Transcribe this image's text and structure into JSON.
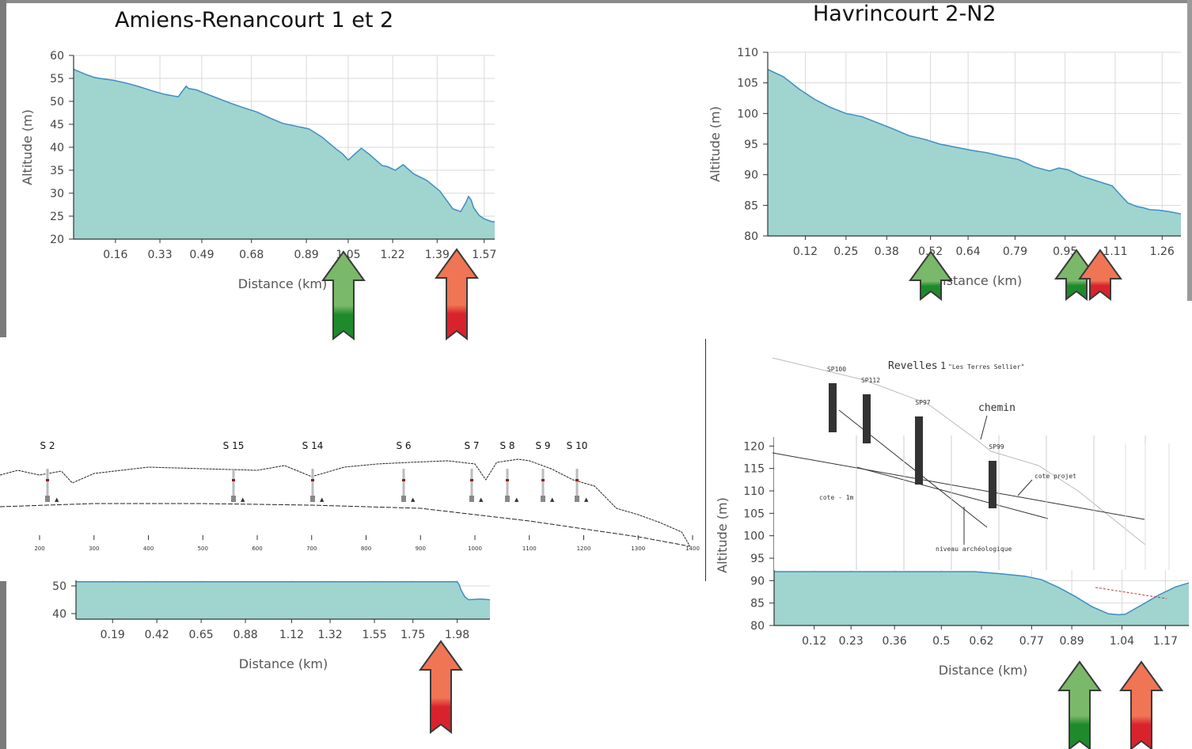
{
  "chart_data": [
    {
      "type": "area",
      "title": "Amiens-Renancourt 1 et 2",
      "xlabel": "Distance (km)",
      "ylabel": "Altitude (m)",
      "ylim": [
        20,
        60
      ],
      "yticks": [
        "20",
        "25",
        "30",
        "35",
        "40",
        "45",
        "50",
        "55",
        "60"
      ],
      "xticks": [
        "0.16",
        "0.33",
        "0.49",
        "0.68",
        "0.89",
        "1.05",
        "1.22",
        "1.39",
        "1.57"
      ],
      "grid": true,
      "x": [
        0,
        0.02,
        0.05,
        0.08,
        0.1,
        0.15,
        0.2,
        0.25,
        0.3,
        0.35,
        0.4,
        0.43,
        0.44,
        0.47,
        0.5,
        0.55,
        0.6,
        0.65,
        0.7,
        0.75,
        0.8,
        0.85,
        0.9,
        0.95,
        1.0,
        1.03,
        1.05,
        1.08,
        1.1,
        1.13,
        1.18,
        1.2,
        1.23,
        1.26,
        1.3,
        1.35,
        1.4,
        1.45,
        1.48,
        1.5,
        1.51,
        1.52,
        1.53,
        1.55,
        1.57,
        1.6,
        1.61
      ],
      "y": [
        57,
        56.5,
        55.8,
        55.2,
        55,
        54.6,
        54,
        53.2,
        52.3,
        51.5,
        51,
        53.3,
        52.8,
        52.5,
        51.8,
        50.7,
        49.6,
        48.6,
        47.7,
        46.4,
        45.2,
        44.6,
        44,
        42.2,
        39.8,
        38.5,
        37.2,
        38.8,
        39.8,
        38.5,
        36,
        35.8,
        35,
        36.2,
        34.2,
        32.8,
        30.5,
        26.6,
        26,
        28,
        29.3,
        28.5,
        26.8,
        25.2,
        24.4,
        23.8,
        23.8
      ]
    },
    {
      "type": "area",
      "title": "Havrincourt 2-N2",
      "xlabel": "Distance (km)",
      "ylabel": "Altitude (m)",
      "ylim": [
        80,
        110
      ],
      "yticks": [
        "80",
        "85",
        "90",
        "95",
        "100",
        "105",
        "110"
      ],
      "xticks": [
        "0.12",
        "0.25",
        "0.38",
        "0.52",
        "0.64",
        "0.79",
        "0.95",
        "1.11",
        "1.26"
      ],
      "grid": true,
      "x": [
        0,
        0.05,
        0.1,
        0.15,
        0.2,
        0.25,
        0.3,
        0.35,
        0.4,
        0.45,
        0.5,
        0.55,
        0.6,
        0.65,
        0.7,
        0.75,
        0.8,
        0.85,
        0.9,
        0.93,
        0.96,
        1.0,
        1.05,
        1.1,
        1.15,
        1.18,
        1.2,
        1.22,
        1.25,
        1.28,
        1.32
      ],
      "y": [
        107.2,
        106,
        104,
        102.3,
        101,
        100,
        99.5,
        98.5,
        97.5,
        96.4,
        95.8,
        95,
        94.5,
        94,
        93.6,
        93,
        92.5,
        91.3,
        90.6,
        91.1,
        90.8,
        89.8,
        89,
        88.2,
        85.4,
        84.8,
        84.6,
        84.3,
        84.2,
        84,
        83.6
      ]
    },
    {
      "type": "line",
      "section_labels": [
        "S 2",
        "S 15",
        "S 14",
        "S 6",
        "S 7",
        "S 8",
        "S 9",
        "S 10"
      ],
      "xticks": [
        "200",
        "300",
        "400",
        "500",
        "600",
        "700",
        "800",
        "900",
        "1000",
        "1100",
        "1200",
        "1300",
        "1400"
      ],
      "surface": {
        "x": [
          100,
          160,
          200,
          240,
          260,
          300,
          400,
          500,
          600,
          650,
          700,
          760,
          820,
          880,
          950,
          1000,
          1020,
          1040,
          1080,
          1100,
          1140,
          1180,
          1220,
          1260,
          1300,
          1340,
          1380,
          1395
        ],
        "y": [
          113,
          113.6,
          113,
          113.5,
          112,
          113.2,
          114,
          113.8,
          113.6,
          114.2,
          112.8,
          114,
          114.4,
          114.6,
          114.8,
          114.4,
          112.4,
          114.6,
          115,
          114.8,
          113.8,
          112.4,
          111.6,
          108.8,
          108,
          107,
          105.8,
          104
        ]
      },
      "lower": {
        "x": [
          100,
          300,
          500,
          700,
          900,
          1100,
          1300,
          1395
        ],
        "y": [
          109,
          109.4,
          109.4,
          109.2,
          108.8,
          107.2,
          105.2,
          104
        ]
      }
    },
    {
      "type": "area",
      "xlabel": "Distance (km)",
      "ylabel": "",
      "yticks": [
        "40",
        "50"
      ],
      "ylim": [
        38,
        52
      ],
      "xticks": [
        "0.19",
        "0.42",
        "0.65",
        "0.88",
        "1.12",
        "1.32",
        "1.55",
        "1.75",
        "1.98"
      ],
      "x": [
        0,
        0.4,
        0.8,
        1.2,
        1.6,
        1.98,
        1.99,
        2.0,
        2.02,
        2.04,
        2.1,
        2.15
      ],
      "y": [
        51.5,
        51.5,
        51.5,
        51.5,
        51.5,
        51.5,
        50.5,
        48.5,
        46,
        45,
        45.3,
        45
      ]
    },
    {
      "type": "area",
      "xlabel": "Distance (km)",
      "ylabel": "Altitude (m)",
      "ylim": [
        80,
        122
      ],
      "yticks": [
        "80",
        "85",
        "90",
        "95",
        "100",
        "105",
        "110",
        "115",
        "120"
      ],
      "xticks": [
        "0.12",
        "0.23",
        "0.36",
        "0.5",
        "0.62",
        "0.77",
        "0.89",
        "1.04",
        "1.17"
      ],
      "x": [
        0,
        0.2,
        0.4,
        0.6,
        0.68,
        0.75,
        0.8,
        0.85,
        0.9,
        0.95,
        1.0,
        1.03,
        1.05,
        1.1,
        1.15,
        1.2,
        1.24
      ],
      "y": [
        92,
        92,
        92,
        92,
        91.5,
        91,
        90.2,
        88.5,
        86.5,
        84.2,
        82.6,
        82.4,
        82.5,
        84.6,
        86.8,
        88.6,
        89.5
      ]
    }
  ],
  "overlays": {
    "drawing_title": "Revelles",
    "drawing_subtitle": "\"Les Terres Sellier\"",
    "drawing_marker": "1",
    "label_chemin": "chemin",
    "label_cote_projet": "cote projet",
    "label_cote_1m": "cote - 1m",
    "label_niveau": "niveau archéologique",
    "sondages": [
      "SP100",
      "SP112",
      "SP97",
      "SP99"
    ]
  },
  "colors": {
    "fill": "#a0d4ce",
    "line": "#3c8ec4",
    "grid": "#d9d9d9",
    "arrow_green": "#7ab86a",
    "arrow_green_dark": "#1e8a2c",
    "arrow_red": "#ef7555",
    "arrow_red_dark": "#d8232c"
  },
  "arrows": [
    {
      "panel": 1,
      "kind": "green-arrow",
      "at_x": 1.05
    },
    {
      "panel": 1,
      "kind": "red-arrow",
      "at_x": 1.5
    },
    {
      "panel": 2,
      "kind": "green-arrow",
      "at_x": 0.46
    },
    {
      "panel": 2,
      "kind": "green-arrow",
      "at_x": 0.97
    },
    {
      "panel": 2,
      "kind": "red-arrow",
      "at_x": 1.05
    },
    {
      "panel": 4,
      "kind": "red-arrow",
      "at_x": 1.67
    },
    {
      "panel": 5,
      "kind": "green-arrow",
      "at_x": 0.88
    },
    {
      "panel": 5,
      "kind": "red-arrow",
      "at_x": 1.06
    }
  ]
}
